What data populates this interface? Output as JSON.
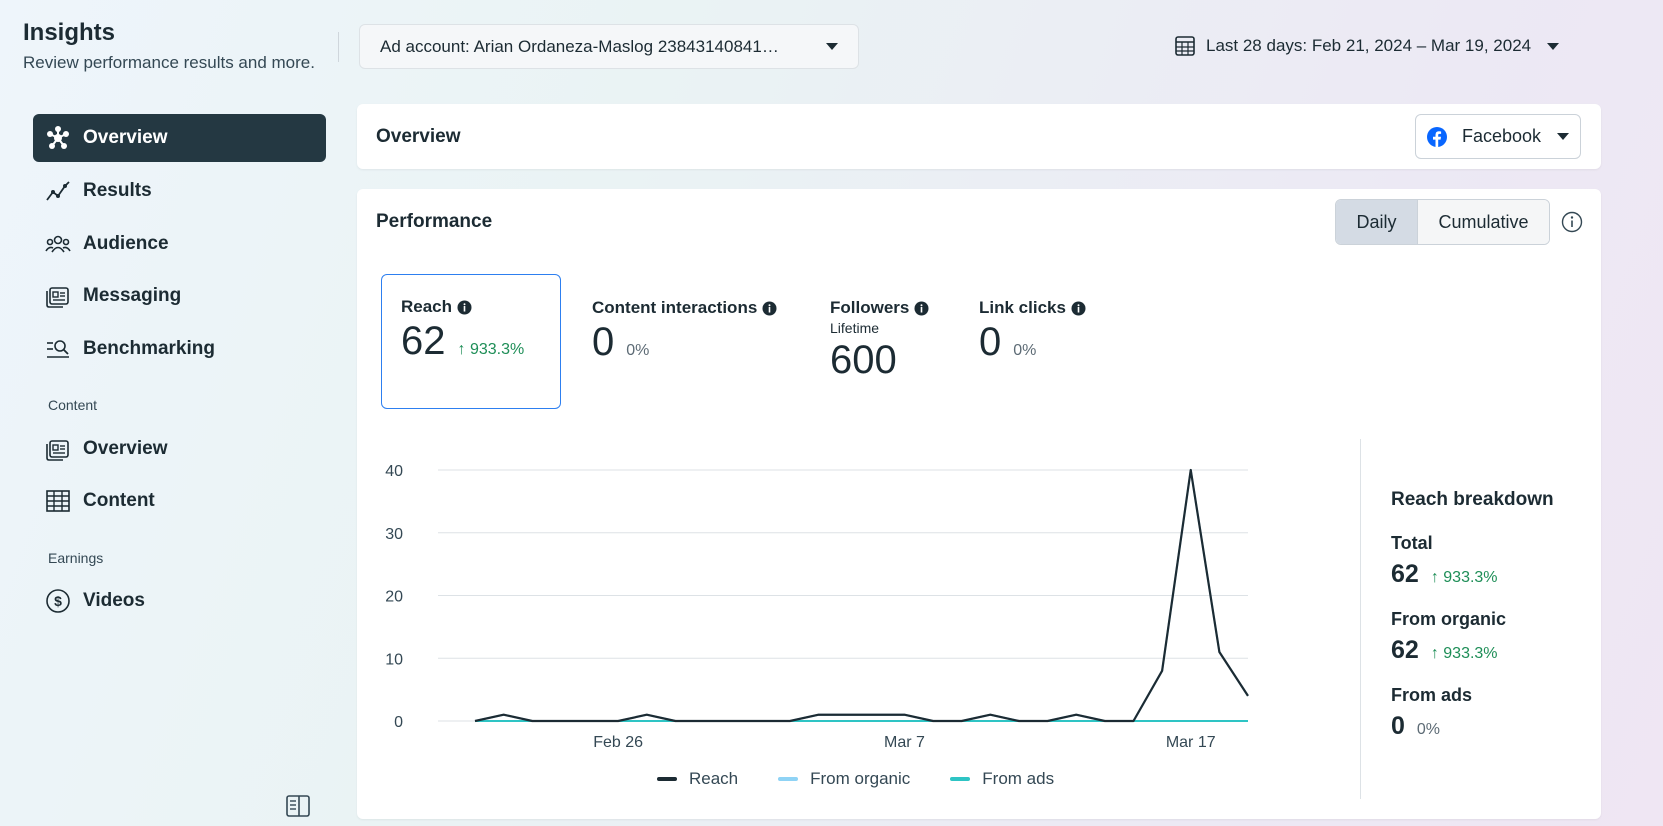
{
  "header": {
    "title": "Insights",
    "subtitle": "Review performance results and more.",
    "ad_account_label": "Ad account: Arian Ordaneza-Maslog 23843140841…",
    "date_range_label": "Last 28 days: Feb 21, 2024 – Mar 19, 2024"
  },
  "sidebar": {
    "items": [
      {
        "label": "Overview",
        "icon": "overview-icon",
        "active": true
      },
      {
        "label": "Results",
        "icon": "results-icon"
      },
      {
        "label": "Audience",
        "icon": "audience-icon"
      },
      {
        "label": "Messaging",
        "icon": "messaging-icon"
      },
      {
        "label": "Benchmarking",
        "icon": "benchmarking-icon"
      }
    ],
    "content_section": "Content",
    "content_items": [
      {
        "label": "Overview",
        "icon": "content-overview-icon"
      },
      {
        "label": "Content",
        "icon": "table-icon"
      }
    ],
    "earnings_section": "Earnings",
    "earnings_items": [
      {
        "label": "Videos",
        "icon": "dollar-icon"
      }
    ]
  },
  "overview_card": {
    "title": "Overview",
    "platform_label": "Facebook"
  },
  "performance": {
    "title": "Performance",
    "toggle": {
      "daily": "Daily",
      "cumulative": "Cumulative",
      "selected": "Daily"
    },
    "metrics": [
      {
        "label": "Reach",
        "value": "62",
        "delta": "933.3%",
        "trend": "up"
      },
      {
        "label": "Content interactions",
        "value": "0",
        "delta": "0%"
      },
      {
        "label": "Followers",
        "sublabel": "Lifetime",
        "value": "600"
      },
      {
        "label": "Link clicks",
        "value": "0",
        "delta": "0%"
      }
    ],
    "legend": [
      {
        "label": "Reach",
        "color": "#1c2b33"
      },
      {
        "label": "From organic",
        "color": "#8fd3f5"
      },
      {
        "label": "From ads",
        "color": "#2ec4c4"
      }
    ],
    "breakdown": {
      "title": "Reach breakdown",
      "total_label": "Total",
      "total_value": "62",
      "total_delta": "933.3%",
      "organic_label": "From organic",
      "organic_value": "62",
      "organic_delta": "933.3%",
      "ads_label": "From ads",
      "ads_value": "0",
      "ads_delta": "0%"
    }
  },
  "chart_data": {
    "type": "line",
    "x": [
      "Feb 21",
      "Feb 22",
      "Feb 23",
      "Feb 24",
      "Feb 25",
      "Feb 26",
      "Feb 27",
      "Feb 28",
      "Feb 29",
      "Mar 1",
      "Mar 2",
      "Mar 3",
      "Mar 4",
      "Mar 5",
      "Mar 6",
      "Mar 7",
      "Mar 8",
      "Mar 9",
      "Mar 10",
      "Mar 11",
      "Mar 12",
      "Mar 13",
      "Mar 14",
      "Mar 15",
      "Mar 16",
      "Mar 17",
      "Mar 18",
      "Mar 19"
    ],
    "x_tick_labels": [
      "Feb 26",
      "Mar 7",
      "Mar 17"
    ],
    "y_ticks": [
      0,
      10,
      20,
      30,
      40
    ],
    "ylim": [
      0,
      40
    ],
    "grid": true,
    "legend_position": "bottom",
    "series": [
      {
        "name": "Reach",
        "values": [
          0,
          1,
          0,
          0,
          0,
          0,
          1,
          0,
          0,
          0,
          0,
          0,
          1,
          1,
          1,
          1,
          0,
          0,
          1,
          0,
          0,
          1,
          0,
          0,
          8,
          40,
          11,
          4
        ]
      },
      {
        "name": "From organic",
        "values": [
          0,
          1,
          0,
          0,
          0,
          0,
          1,
          0,
          0,
          0,
          0,
          0,
          1,
          1,
          1,
          1,
          0,
          0,
          1,
          0,
          0,
          1,
          0,
          0,
          8,
          40,
          11,
          4
        ]
      },
      {
        "name": "From ads",
        "values": [
          0,
          0,
          0,
          0,
          0,
          0,
          0,
          0,
          0,
          0,
          0,
          0,
          0,
          0,
          0,
          0,
          0,
          0,
          0,
          0,
          0,
          0,
          0,
          0,
          0,
          0,
          0,
          0
        ]
      }
    ]
  }
}
